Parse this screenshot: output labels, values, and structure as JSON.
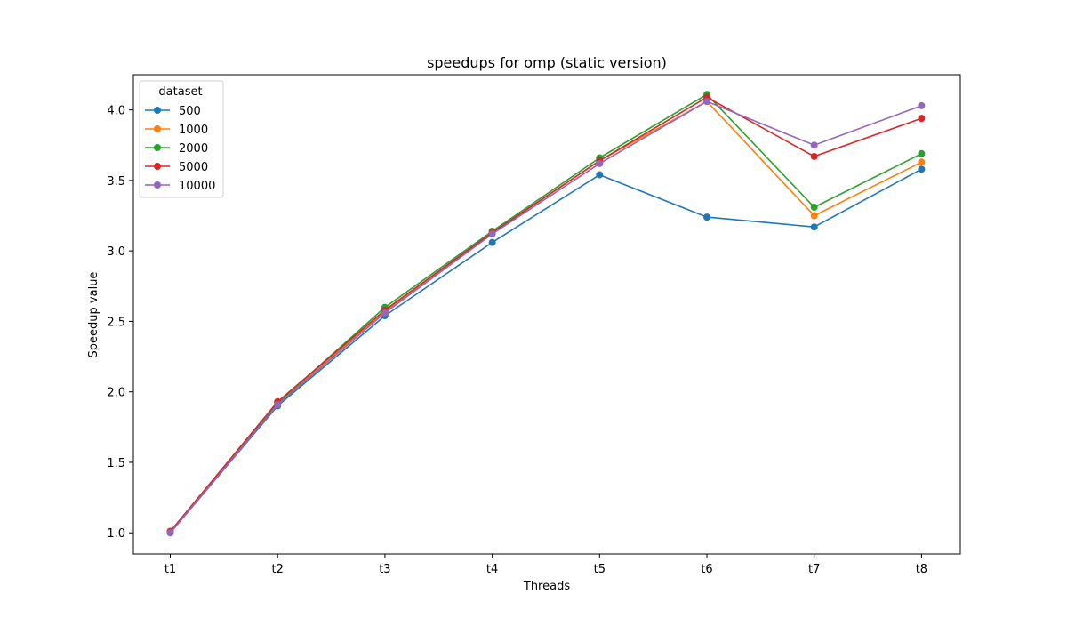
{
  "chart_data": {
    "type": "line",
    "title": "speedups for omp (static version)",
    "xlabel": "Threads",
    "ylabel": "Speedup value",
    "categories": [
      "t1",
      "t2",
      "t3",
      "t4",
      "t5",
      "t6",
      "t7",
      "t8"
    ],
    "ylim": [
      0.85,
      4.25
    ],
    "yticks": [
      1.0,
      1.5,
      2.0,
      2.5,
      3.0,
      3.5,
      4.0
    ],
    "ytick_labels": [
      "1.0",
      "1.5",
      "2.0",
      "2.5",
      "3.0",
      "3.5",
      "4.0"
    ],
    "grid": false,
    "legend": {
      "title": "dataset",
      "position": "upper-left"
    },
    "series": [
      {
        "name": "500",
        "color": "#1f77b4",
        "values": [
          1.0,
          1.9,
          2.54,
          3.06,
          3.54,
          3.24,
          3.17,
          3.58
        ]
      },
      {
        "name": "1000",
        "color": "#ff7f0e",
        "values": [
          1.0,
          1.92,
          2.57,
          3.13,
          3.64,
          4.06,
          3.25,
          3.63
        ]
      },
      {
        "name": "2000",
        "color": "#2ca02c",
        "values": [
          1.01,
          1.92,
          2.6,
          3.14,
          3.66,
          4.11,
          3.31,
          3.69
        ]
      },
      {
        "name": "5000",
        "color": "#d62728",
        "values": [
          1.01,
          1.93,
          2.58,
          3.13,
          3.64,
          4.09,
          3.67,
          3.94
        ]
      },
      {
        "name": "10000",
        "color": "#9467bd",
        "values": [
          1.0,
          1.91,
          2.56,
          3.12,
          3.62,
          4.06,
          3.75,
          4.03
        ]
      }
    ]
  }
}
